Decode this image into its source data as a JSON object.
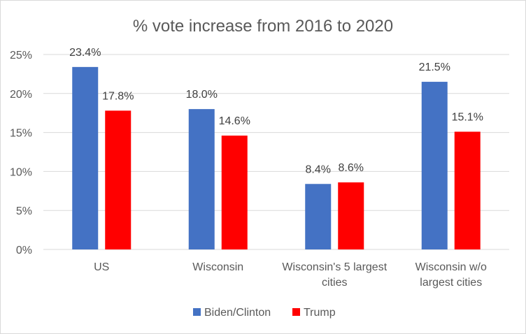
{
  "chart_data": {
    "type": "bar",
    "title": "% vote increase from 2016 to 2020",
    "categories": [
      [
        "US"
      ],
      [
        "Wisconsin"
      ],
      [
        "Wisconsin's 5 largest",
        "cities"
      ],
      [
        "Wisconsin w/o",
        "largest cities"
      ]
    ],
    "series": [
      {
        "name": "Biden/Clinton",
        "color": "#4472c4",
        "values": [
          23.4,
          18.0,
          8.4,
          21.5
        ],
        "labels": [
          "23.4%",
          "18.0%",
          "8.4%",
          "21.5%"
        ]
      },
      {
        "name": "Trump",
        "color": "#ff0000",
        "values": [
          17.8,
          14.6,
          8.6,
          15.1
        ],
        "labels": [
          "17.8%",
          "14.6%",
          "8.6%",
          "15.1%"
        ]
      }
    ],
    "ylim": [
      0,
      25
    ],
    "yticks": [
      0,
      5,
      10,
      15,
      20,
      25
    ],
    "ytick_labels": [
      "0%",
      "5%",
      "10%",
      "15%",
      "20%",
      "25%"
    ],
    "grid": true,
    "legend_position": "bottom"
  }
}
